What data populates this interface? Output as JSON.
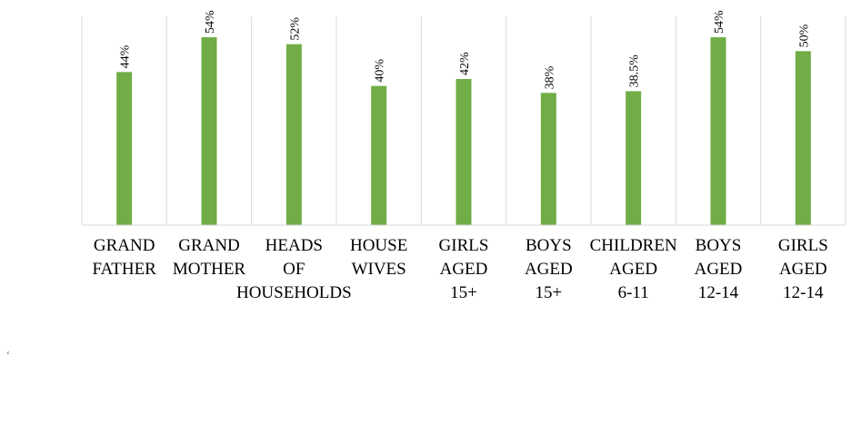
{
  "chart_data": {
    "type": "bar",
    "categories": [
      [
        "GRAND",
        "FATHER"
      ],
      [
        "GRAND",
        "MOTHER"
      ],
      [
        "HEADS",
        "OF",
        "HOUSEHOLDS"
      ],
      [
        "HOUSE",
        "WIVES"
      ],
      [
        "GIRLS",
        "AGED",
        "15+"
      ],
      [
        "BOYS",
        "AGED",
        "15+"
      ],
      [
        "CHILDREN",
        "AGED",
        "6-11"
      ],
      [
        "BOYS",
        "AGED",
        "12-14"
      ],
      [
        "GIRLS",
        "AGED",
        "12-14"
      ]
    ],
    "values": [
      44,
      54,
      52,
      40,
      42,
      38,
      38.5,
      54,
      50
    ],
    "data_labels": [
      "44%",
      "54%",
      "52%",
      "40%",
      "42%",
      "38%",
      "38.5%",
      "54%",
      "50%"
    ],
    "title": "",
    "xlabel": "",
    "ylabel": "",
    "ylim": [
      0,
      60
    ],
    "bar_color": "#70ad47",
    "grid": "vertical separators between categories",
    "legend": "none"
  },
  "stray_mark": "‘"
}
